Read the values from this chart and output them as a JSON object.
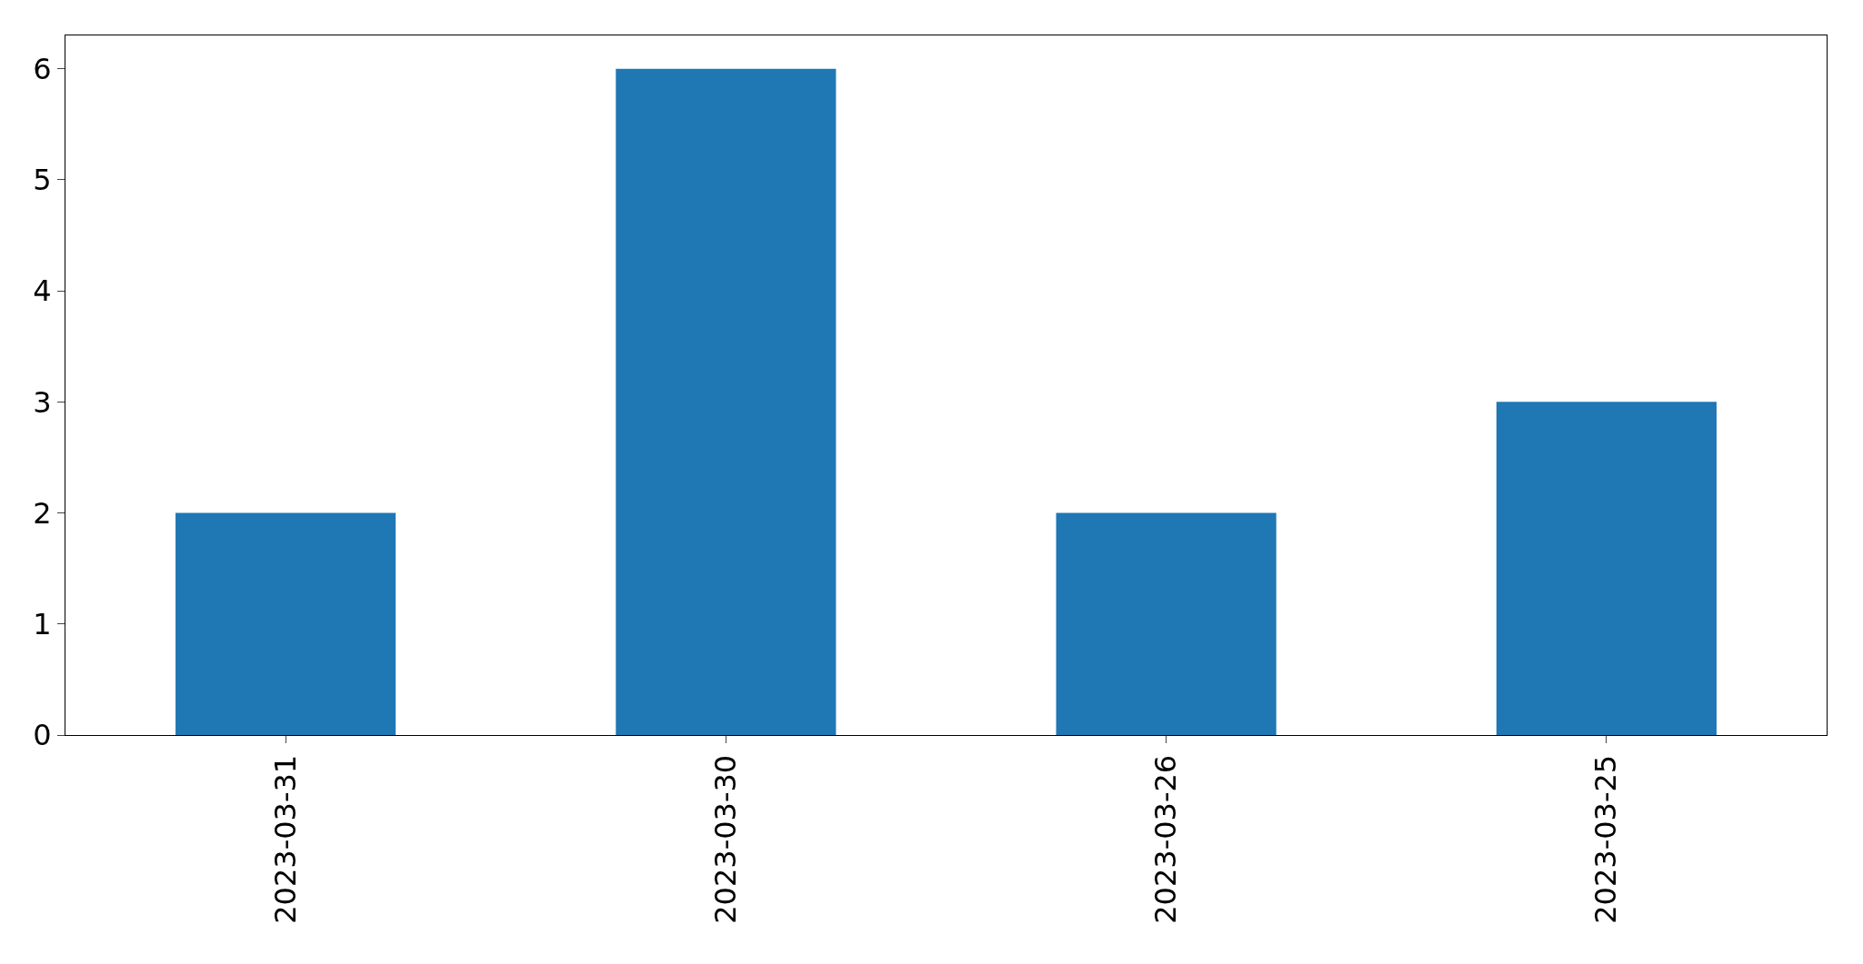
{
  "chart_data": {
    "type": "bar",
    "categories": [
      "2023-03-31",
      "2023-03-30",
      "2023-03-26",
      "2023-03-25"
    ],
    "values": [
      2,
      6,
      2,
      3
    ],
    "color": "#1f77b4",
    "ylim": [
      0,
      6.3
    ],
    "yticks": [
      0,
      1,
      2,
      3,
      4,
      5,
      6
    ],
    "grid": false
  }
}
